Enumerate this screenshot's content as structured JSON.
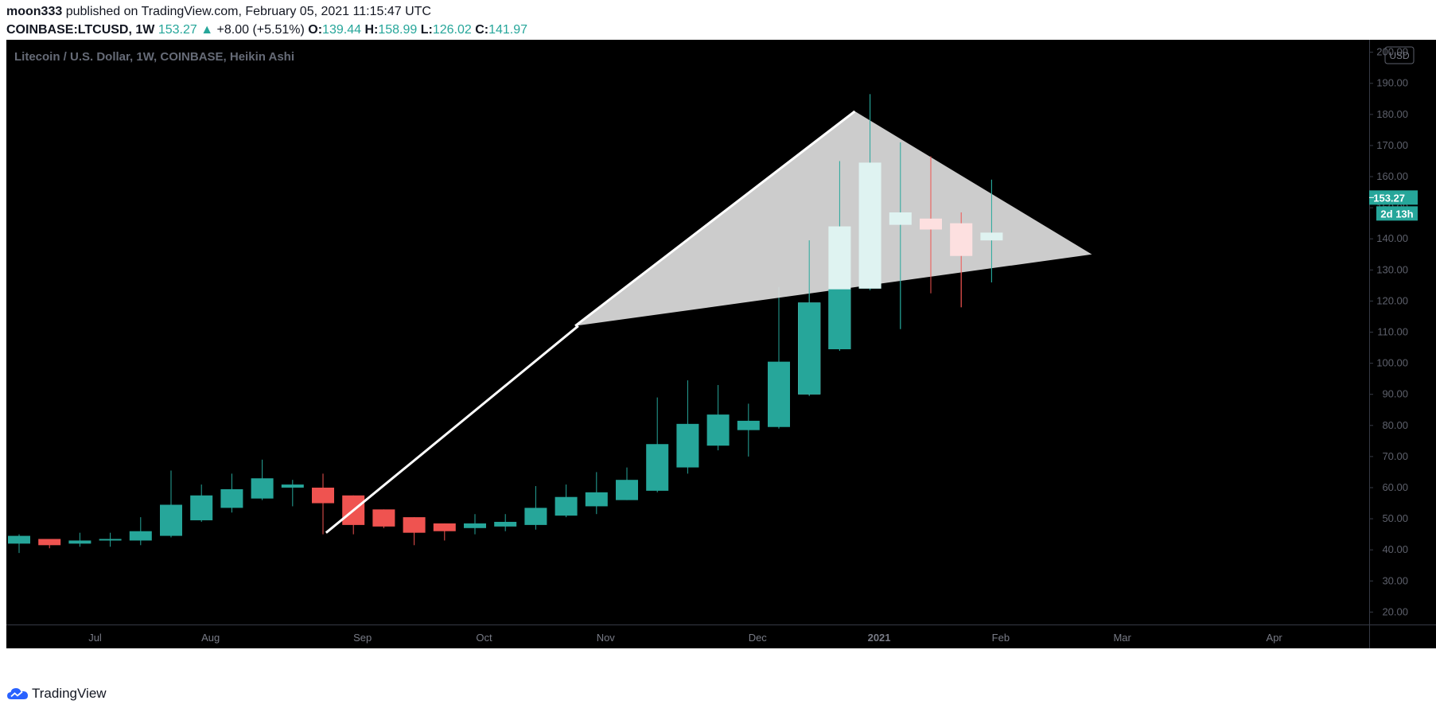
{
  "header": {
    "user": "moon333",
    "published": "published on TradingView.com, February 05, 2021 11:15:47 UTC",
    "symbol": "COINBASE:LTCUSD, 1W",
    "last": "153.27",
    "change": "+8.00 (+5.51%)",
    "o_label": "O:",
    "o": "139.44",
    "h_label": "H:",
    "h": "158.99",
    "l_label": "L:",
    "l": "126.02",
    "c_label": "C:",
    "c": "141.97"
  },
  "footer": {
    "brand": "TradingView"
  },
  "colors": {
    "up": "#26a69a",
    "down": "#ef5350",
    "background": "#000000"
  },
  "chart_data": {
    "type": "candlestick",
    "title": "Litecoin / U.S. Dollar, 1W, COINBASE, Heikin Ashi",
    "currency": "USD",
    "ylim": [
      16,
      204
    ],
    "y_ticks": [
      20,
      30,
      40,
      50,
      60,
      70,
      80,
      90,
      100,
      110,
      120,
      130,
      140,
      150,
      160,
      170,
      180,
      190,
      200
    ],
    "x_ticks": [
      {
        "label": "Jul",
        "idx": 2.5
      },
      {
        "label": "Aug",
        "idx": 6.3
      },
      {
        "label": "Sep",
        "idx": 11.3
      },
      {
        "label": "Oct",
        "idx": 15.3
      },
      {
        "label": "Nov",
        "idx": 19.3
      },
      {
        "label": "Dec",
        "idx": 24.3
      },
      {
        "label": "2021",
        "idx": 28.3,
        "bold": true
      },
      {
        "label": "Feb",
        "idx": 32.3
      },
      {
        "label": "Mar",
        "idx": 36.3
      },
      {
        "label": "Apr",
        "idx": 41.3
      }
    ],
    "candles": [
      {
        "o": 42,
        "h": 45,
        "l": 39,
        "c": 44.5
      },
      {
        "o": 43.5,
        "h": 43.5,
        "l": 40.5,
        "c": 41.5
      },
      {
        "o": 42,
        "h": 45.5,
        "l": 41,
        "c": 43
      },
      {
        "o": 43,
        "h": 45.5,
        "l": 41,
        "c": 43.5
      },
      {
        "o": 43,
        "h": 50.5,
        "l": 41.5,
        "c": 46
      },
      {
        "o": 44.5,
        "h": 65.5,
        "l": 44,
        "c": 54.5
      },
      {
        "o": 49.5,
        "h": 61,
        "l": 49,
        "c": 57.5
      },
      {
        "o": 53.5,
        "h": 64.5,
        "l": 52,
        "c": 59.5
      },
      {
        "o": 56.5,
        "h": 69,
        "l": 56,
        "c": 63
      },
      {
        "o": 60,
        "h": 62.5,
        "l": 54,
        "c": 61
      },
      {
        "o": 60,
        "h": 64.5,
        "l": 45,
        "c": 55
      },
      {
        "o": 57.5,
        "h": 57.5,
        "l": 45,
        "c": 48
      },
      {
        "o": 53,
        "h": 53,
        "l": 47,
        "c": 47.5
      },
      {
        "o": 50.5,
        "h": 50.5,
        "l": 41.5,
        "c": 45.5
      },
      {
        "o": 48.5,
        "h": 48.5,
        "l": 43,
        "c": 46
      },
      {
        "o": 47,
        "h": 51.5,
        "l": 45,
        "c": 48.5
      },
      {
        "o": 47.5,
        "h": 51.5,
        "l": 46,
        "c": 49
      },
      {
        "o": 48,
        "h": 60.5,
        "l": 46.5,
        "c": 53.5
      },
      {
        "o": 51,
        "h": 61,
        "l": 50.5,
        "c": 57
      },
      {
        "o": 54,
        "h": 65,
        "l": 51.5,
        "c": 58.5
      },
      {
        "o": 56,
        "h": 66.5,
        "l": 56,
        "c": 62.5
      },
      {
        "o": 59,
        "h": 89,
        "l": 58.5,
        "c": 74
      },
      {
        "o": 66.5,
        "h": 94.5,
        "l": 64.5,
        "c": 80.5
      },
      {
        "o": 73.5,
        "h": 93,
        "l": 72,
        "c": 83.5
      },
      {
        "o": 78.5,
        "h": 87,
        "l": 70,
        "c": 81.5
      },
      {
        "o": 79.5,
        "h": 124.5,
        "l": 79,
        "c": 100.5
      },
      {
        "o": 90,
        "h": 139.5,
        "l": 89.5,
        "c": 119.5
      },
      {
        "o": 104.5,
        "h": 165,
        "l": 104,
        "c": 144
      },
      {
        "o": 124,
        "h": 186.5,
        "l": 123.5,
        "c": 164.5
      },
      {
        "o": 144.5,
        "h": 171,
        "l": 111,
        "c": 148.5
      },
      {
        "o": 146.5,
        "h": 166.5,
        "l": 122.5,
        "c": 143
      },
      {
        "o": 145,
        "h": 148.5,
        "l": 118,
        "c": 134.5
      },
      {
        "o": 139.5,
        "h": 159,
        "l": 126,
        "c": 142
      }
    ],
    "annotations": {
      "trend_line": [
        {
          "idx": 10.1,
          "price": 45.5
        },
        {
          "idx": 18.4,
          "price": 112
        }
      ],
      "triangle": [
        {
          "idx": 18.3,
          "price": 112
        },
        {
          "idx": 27.5,
          "price": 181
        },
        {
          "idx": 35.3,
          "price": 135
        }
      ],
      "triangle_overlap_start": 26
    },
    "price_label": "153.27",
    "countdown_label": "2d 13h"
  }
}
